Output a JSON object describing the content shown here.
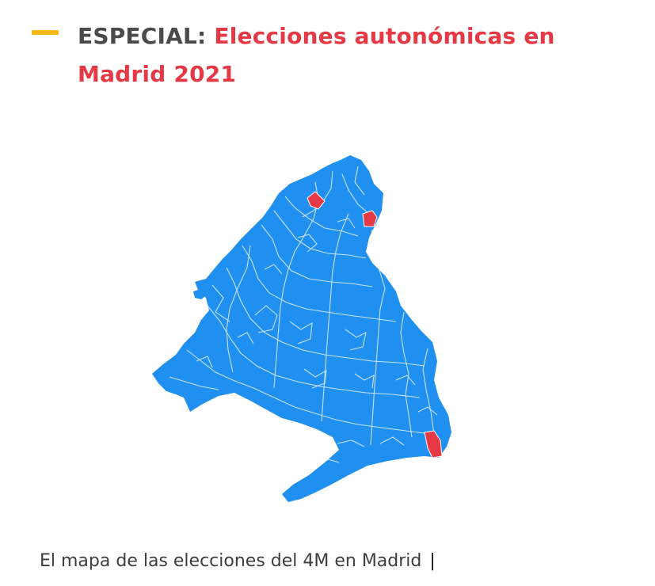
{
  "header": {
    "kicker": "ESPECIAL:",
    "title": "Elecciones autonómicas en Madrid 2021"
  },
  "map": {
    "region_color": "#1f8ff0",
    "highlight_color": "#e53945",
    "accent_color": "#f5b919"
  },
  "caption": {
    "text": "El mapa de las elecciones del 4M en Madrid",
    "separator": "|"
  }
}
